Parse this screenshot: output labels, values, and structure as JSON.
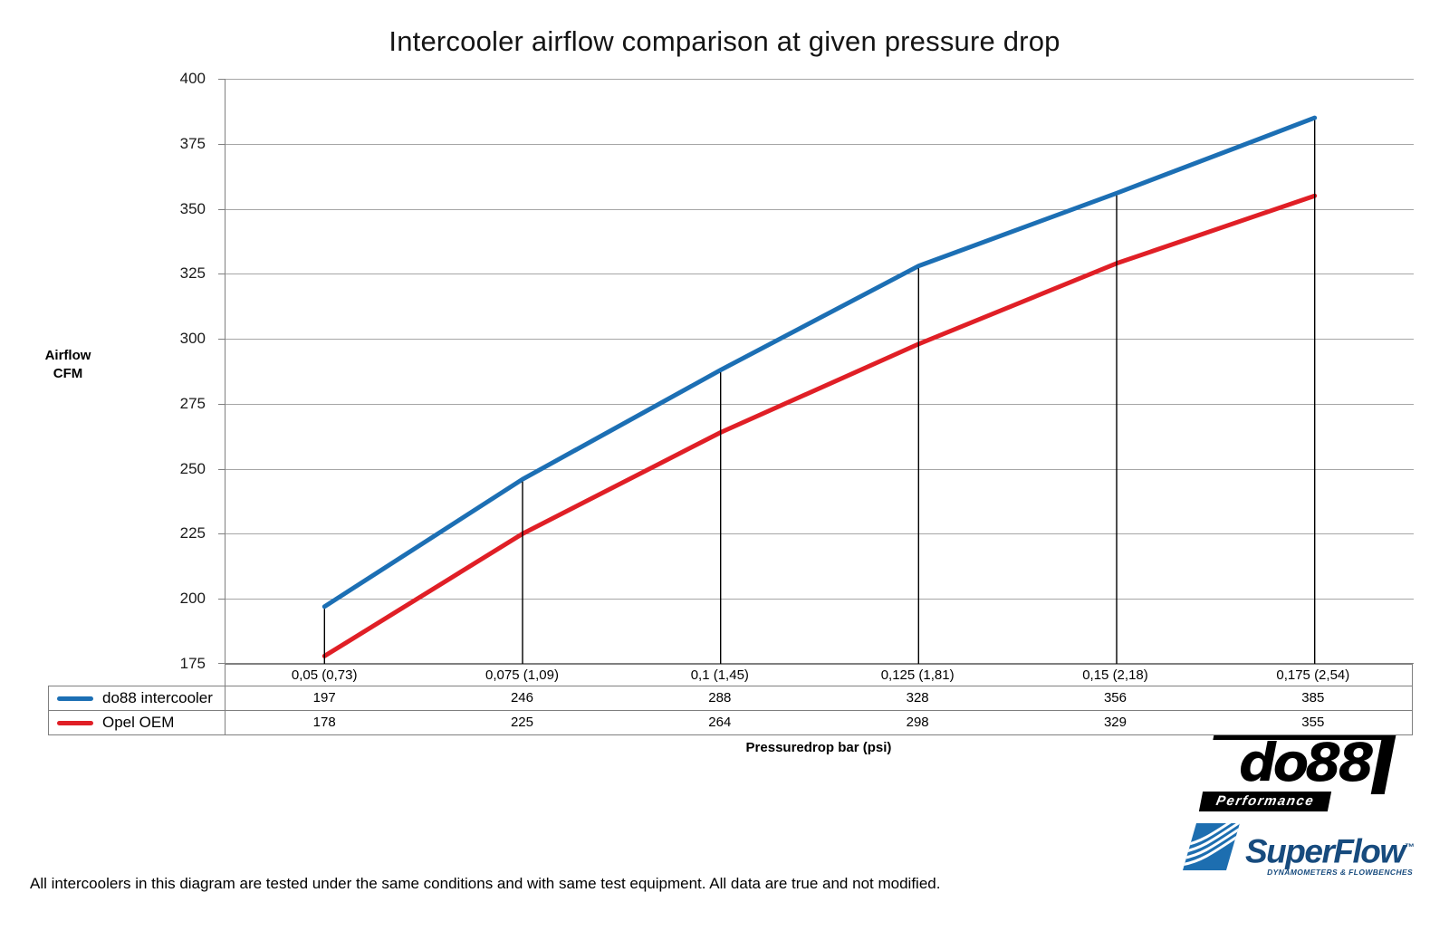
{
  "title": "Intercooler airflow comparison at given pressure drop",
  "y_axis_label_line1": "Airflow",
  "y_axis_label_line2": "CFM",
  "x_axis_title": "Pressuredrop bar (psi)",
  "footnote": "All intercoolers in this diagram are tested under the same conditions and with same test equipment. All data are true and not modified.",
  "logos": {
    "do88_text": "do88",
    "do88_sub": "Performance",
    "superflow_text": "SuperFlow",
    "superflow_tm": "™",
    "superflow_sub": "DYNAMOMETERS & FLOWBENCHES"
  },
  "colors": {
    "do88_line": "#1C6FB4",
    "oem_line": "#E01F26",
    "grid": "#A6A6A6",
    "axis": "#808080",
    "table_border": "#7F7F7F",
    "dropline": "#000000",
    "superflow_text_blue": "#174B7E",
    "superflow_icon_blue": "#1D6EB0"
  },
  "chart_data": {
    "type": "line",
    "title": "Intercooler airflow comparison at given pressure drop",
    "categories": [
      "0,05 (0,73)",
      "0,075 (1,09)",
      "0,1 (1,45)",
      "0,125 (1,81)",
      "0,15 (2,18)",
      "0,175 (2,54)"
    ],
    "series": [
      {
        "name": "do88 intercooler",
        "color": "#1C6FB4",
        "values": [
          197,
          246,
          288,
          328,
          356,
          385
        ]
      },
      {
        "name": "Opel OEM",
        "color": "#E01F26",
        "values": [
          178,
          225,
          264,
          298,
          329,
          355
        ]
      }
    ],
    "xlabel": "Pressuredrop bar (psi)",
    "ylabel": "Airflow CFM",
    "ylim": [
      175,
      400
    ],
    "ytick_step": 25,
    "grid": true,
    "droplines_to_first_series": true,
    "legend_position": "table-left"
  }
}
